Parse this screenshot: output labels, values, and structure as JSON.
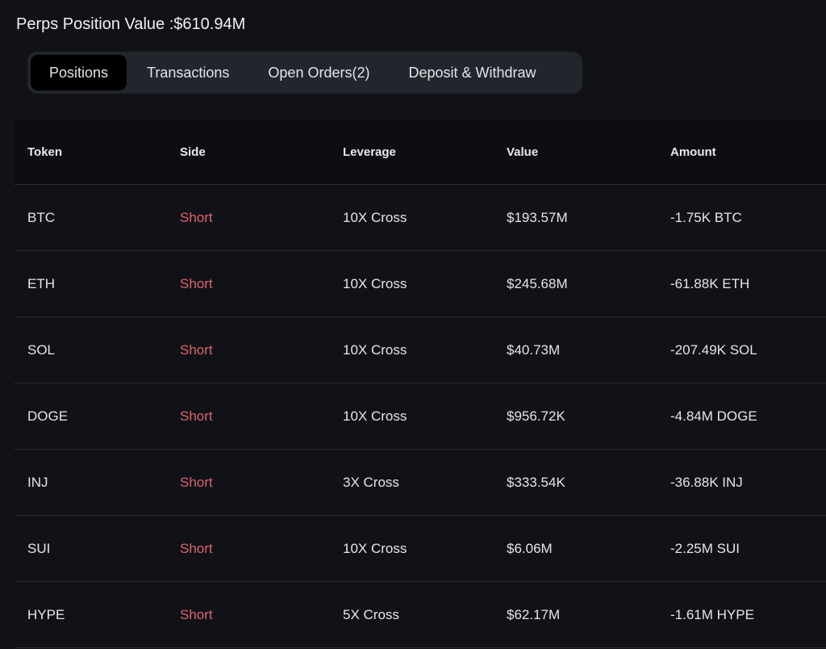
{
  "header": {
    "title": "Perps Position Value :$610.94M"
  },
  "tabs": [
    {
      "label": "Positions",
      "active": true
    },
    {
      "label": "Transactions"
    },
    {
      "label": "Open Orders(2)"
    },
    {
      "label": "Deposit & Withdraw"
    }
  ],
  "table": {
    "columns": [
      "Token",
      "Side",
      "Leverage",
      "Value",
      "Amount"
    ],
    "rows": [
      [
        "BTC",
        "Short",
        "10X Cross",
        "$193.57M",
        "-1.75K BTC"
      ],
      [
        "ETH",
        "Short",
        "10X Cross",
        "$245.68M",
        "-61.88K ETH"
      ],
      [
        "SOL",
        "Short",
        "10X Cross",
        "$40.73M",
        "-207.49K SOL"
      ],
      [
        "DOGE",
        "Short",
        "10X Cross",
        "$956.72K",
        "-4.84M DOGE"
      ],
      [
        "INJ",
        "Short",
        "3X Cross",
        "$333.54K",
        "-36.88K INJ"
      ],
      [
        "SUI",
        "Short",
        "10X Cross",
        "$6.06M",
        "-2.25M SUI"
      ],
      [
        "HYPE",
        "Short",
        "5X Cross",
        "$62.17M",
        "-1.61M HYPE"
      ]
    ]
  },
  "colors": {
    "short": "#e0636b",
    "background": "#101218"
  }
}
